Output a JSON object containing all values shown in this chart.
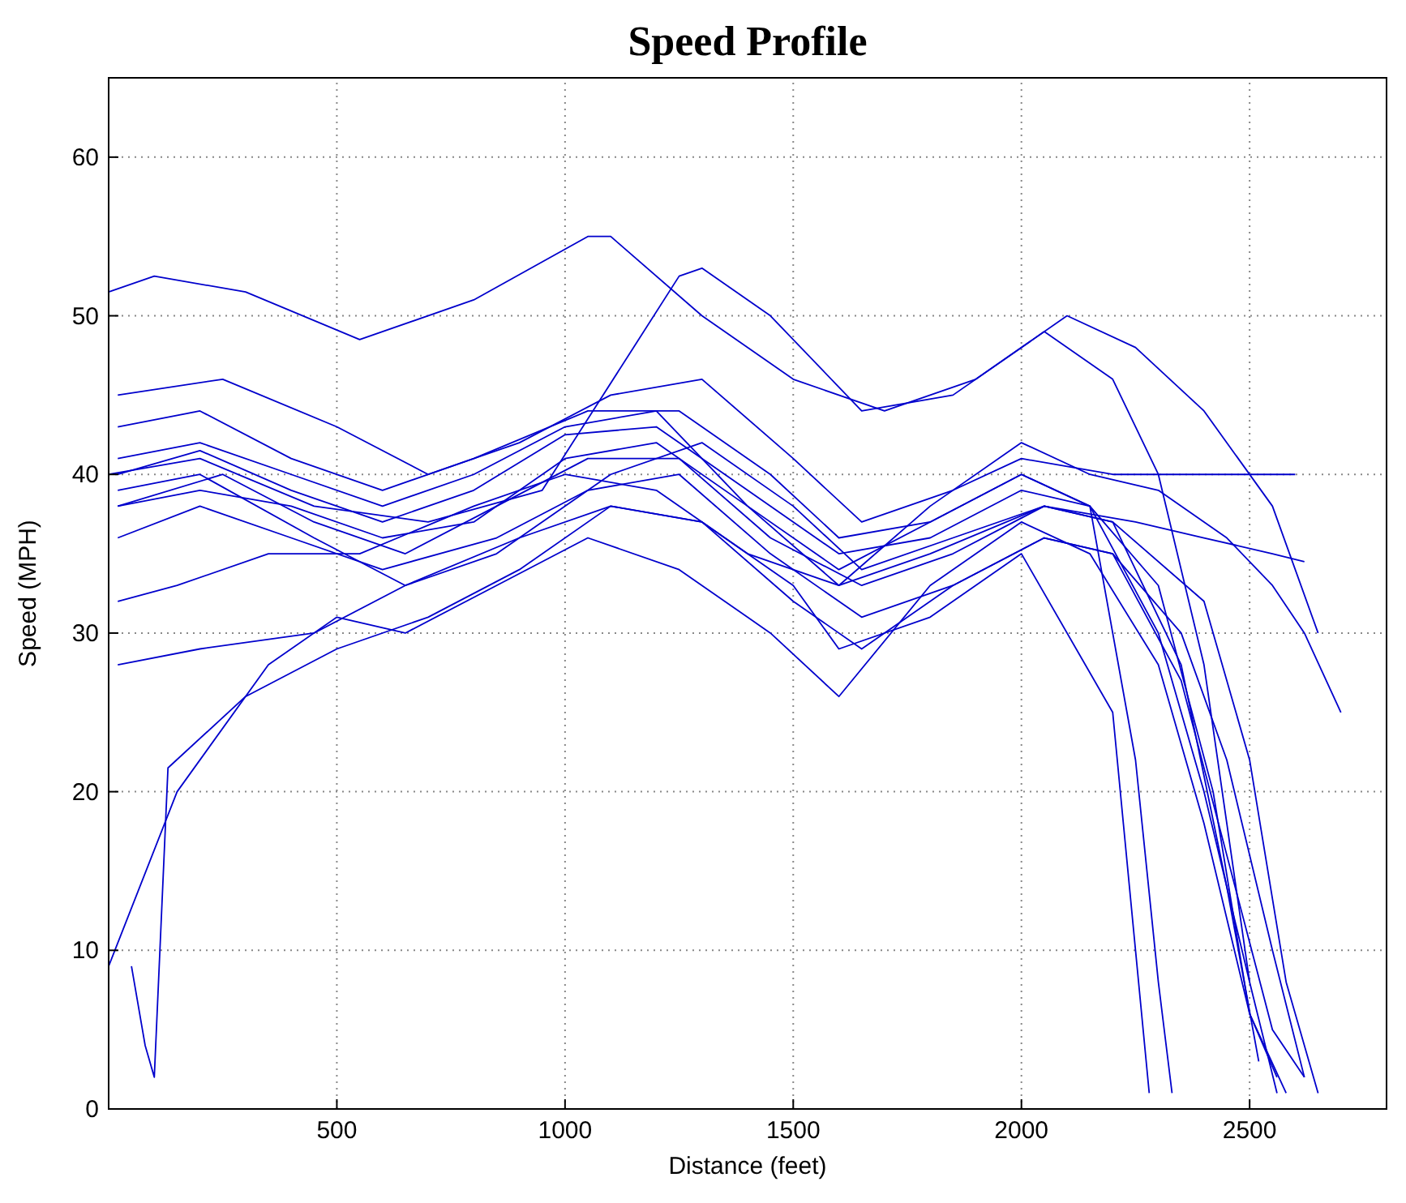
{
  "chart_data": {
    "type": "line",
    "title": "Speed Profile",
    "xlabel": "Distance (feet)",
    "ylabel": "Speed (MPH)",
    "xlim": [
      0,
      2800
    ],
    "ylim": [
      0,
      65
    ],
    "xticks": [
      500,
      1000,
      1500,
      2000,
      2500
    ],
    "yticks": [
      0,
      10,
      20,
      30,
      40,
      50,
      60
    ],
    "grid": true,
    "series": [
      {
        "color": "#0000cc",
        "x": [
          0,
          100,
          300,
          550,
          800,
          1050,
          1100,
          1300,
          1500,
          1700,
          1900,
          2050,
          2200,
          2300,
          2400,
          2500
        ],
        "values": [
          51.5,
          52.5,
          51.5,
          48.5,
          51,
          55,
          55,
          50,
          46,
          44,
          46,
          49,
          46,
          40,
          28,
          8
        ]
      },
      {
        "color": "#0000cc",
        "x": [
          0,
          200,
          450,
          700,
          950,
          1150,
          1250,
          1300,
          1450,
          1650,
          1850,
          2100,
          2250,
          2400,
          2550,
          2650
        ],
        "values": [
          40,
          41,
          38,
          37,
          39,
          48,
          52.5,
          53,
          50,
          44,
          45,
          50,
          48,
          44,
          38,
          30
        ]
      },
      {
        "color": "#0000cc",
        "x": [
          0,
          150,
          350,
          500,
          650,
          850,
          1050,
          1250,
          1450,
          1600,
          1800,
          2000,
          2150,
          2300,
          2400,
          2500,
          2580
        ],
        "values": [
          9,
          20,
          28,
          31,
          30,
          33,
          36,
          34,
          30,
          26,
          33,
          37,
          35,
          28,
          18,
          6,
          1
        ]
      },
      {
        "color": "#0000cc",
        "x": [
          50,
          80,
          100,
          130,
          300,
          500,
          700,
          900,
          1100,
          1300,
          1500,
          1650,
          1850,
          2050,
          2200,
          2350,
          2450,
          2550,
          2620
        ],
        "values": [
          9,
          4,
          2,
          21.5,
          26,
          29,
          31,
          34,
          38,
          37,
          32,
          29,
          33,
          36,
          35,
          27,
          16,
          5,
          2
        ]
      },
      {
        "color": "#0000cc",
        "x": [
          20,
          200,
          400,
          600,
          800,
          1000,
          1200,
          1400,
          1600,
          1800,
          2000,
          2150,
          2300,
          2400,
          2500,
          2560
        ],
        "values": [
          40,
          41.5,
          39,
          37,
          39,
          42.5,
          43,
          39,
          35,
          36,
          39,
          38,
          30,
          20,
          8,
          1
        ]
      },
      {
        "color": "#0000cc",
        "x": [
          20,
          250,
          450,
          650,
          850,
          1050,
          1250,
          1450,
          1650,
          1850,
          2050,
          2200,
          2350,
          2450,
          2520
        ],
        "values": [
          38,
          40,
          37,
          35,
          38,
          41,
          41,
          36,
          33,
          35,
          38,
          37,
          28,
          14,
          3
        ]
      },
      {
        "color": "#0000cc",
        "x": [
          20,
          200,
          400,
          600,
          800,
          1050,
          1250,
          1450,
          1600,
          1800,
          2000,
          2150,
          2250,
          2300,
          2330
        ],
        "values": [
          43,
          44,
          41,
          39,
          41,
          44,
          44,
          40,
          36,
          37,
          40,
          38,
          22,
          8,
          1
        ]
      },
      {
        "color": "#0000cc",
        "x": [
          20,
          200,
          400,
          600,
          850,
          1050,
          1250,
          1450,
          1650,
          1850,
          2050,
          2200,
          2350,
          2450,
          2550,
          2620
        ],
        "values": [
          36,
          38,
          36,
          34,
          36,
          39,
          40,
          35,
          31,
          33,
          36,
          35,
          30,
          22,
          10,
          2
        ]
      },
      {
        "color": "#0000cc",
        "x": [
          20,
          250,
          500,
          700,
          900,
          1100,
          1300,
          1500,
          1650,
          1850,
          2000,
          2200,
          2300,
          2450,
          2600
        ],
        "values": [
          45,
          46,
          43,
          40,
          42,
          45,
          46,
          41,
          37,
          39,
          41,
          40,
          40,
          40,
          40
        ]
      },
      {
        "color": "#0000cc",
        "x": [
          20,
          200,
          450,
          650,
          850,
          1100,
          1300,
          1500,
          1650,
          1850,
          2050,
          2250,
          2400,
          2550,
          2620
        ],
        "values": [
          28,
          29,
          30,
          33,
          35,
          40,
          42,
          38,
          34,
          36,
          38,
          37,
          36,
          35,
          34.5
        ]
      },
      {
        "color": "#0000cc",
        "x": [
          20,
          200,
          400,
          600,
          800,
          1000,
          1200,
          1400,
          1600,
          1800,
          2000,
          2150,
          2300,
          2420,
          2500,
          2560
        ],
        "values": [
          41,
          42,
          40,
          38,
          40,
          43,
          44,
          38,
          34,
          37,
          40,
          38,
          33,
          20,
          6,
          2
        ]
      },
      {
        "color": "#0000cc",
        "x": [
          20,
          200,
          450,
          650,
          900,
          1100,
          1300,
          1500,
          1600,
          1800,
          2000,
          2200,
          2250,
          2280
        ],
        "values": [
          39,
          40,
          36,
          33,
          36,
          38,
          37,
          33,
          29,
          31,
          35,
          25,
          10,
          1
        ]
      },
      {
        "color": "#0000cc",
        "x": [
          20,
          200,
          400,
          600,
          800,
          1000,
          1200,
          1400,
          1600,
          1800,
          2050,
          2200,
          2400,
          2500,
          2580,
          2650
        ],
        "values": [
          38,
          39,
          38,
          36,
          37,
          41,
          42,
          38,
          33,
          35,
          38,
          37,
          32,
          22,
          8,
          1
        ]
      },
      {
        "color": "#0000cc",
        "x": [
          20,
          150,
          350,
          550,
          800,
          1000,
          1200,
          1400,
          1600,
          1800,
          2000,
          2150,
          2300,
          2450,
          2550,
          2620,
          2700
        ],
        "values": [
          32,
          33,
          35,
          35,
          38,
          40,
          39,
          35,
          33,
          38,
          42,
          40,
          39,
          36,
          33,
          30,
          25
        ]
      }
    ]
  }
}
